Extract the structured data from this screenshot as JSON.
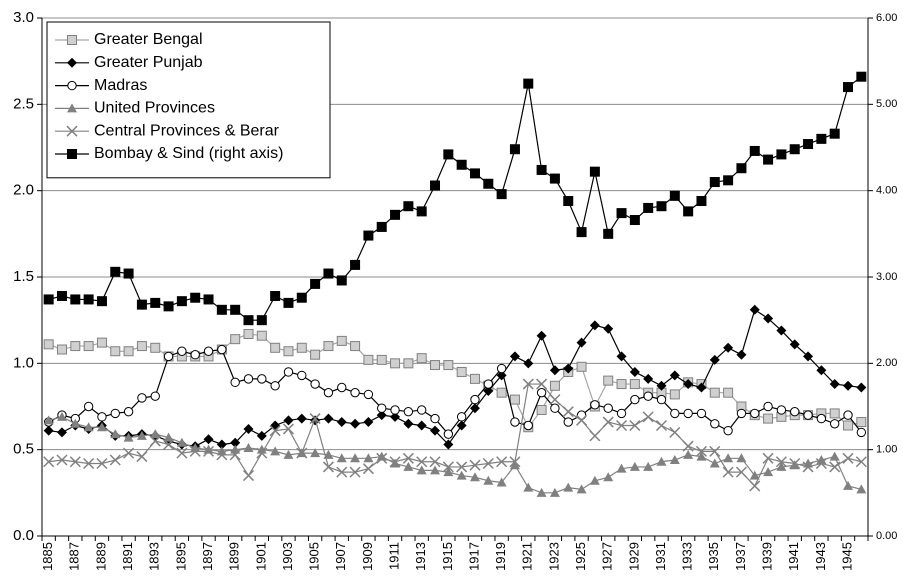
{
  "chart_data": {
    "type": "line",
    "categories": [
      "1885",
      null,
      "1887",
      null,
      "1889",
      null,
      "1891",
      null,
      "1893",
      null,
      "1895",
      null,
      "1897",
      null,
      "1899",
      null,
      "1901",
      null,
      "1903",
      null,
      "1905",
      null,
      "1907",
      null,
      "1909",
      null,
      "1911",
      null,
      "1913",
      null,
      "1915",
      null,
      "1917",
      null,
      "1919",
      null,
      "1921",
      null,
      "1923",
      null,
      "1925",
      null,
      "1927",
      null,
      "1929",
      null,
      "1931",
      null,
      "1933",
      null,
      "1935",
      null,
      "1937",
      null,
      "1939",
      null,
      "1941",
      null,
      "1943",
      null,
      "1945",
      null
    ],
    "ylim": [
      0,
      3
    ],
    "yticks": [
      {
        "value": 0,
        "label": "0.0"
      },
      {
        "value": 0.5,
        "label": "0.5"
      },
      {
        "value": 1,
        "label": "1.0"
      },
      {
        "value": 1.5,
        "label": "1.5"
      },
      {
        "value": 2,
        "label": "2.0"
      },
      {
        "value": 2.5,
        "label": "2.5"
      },
      {
        "value": 3,
        "label": "3.0"
      }
    ],
    "y2lim": [
      0,
      6
    ],
    "y2ticks": [
      {
        "value": 0,
        "label": "0.00"
      },
      {
        "value": 1,
        "label": "1.00"
      },
      {
        "value": 2,
        "label": "2.00"
      },
      {
        "value": 3,
        "label": "3.00"
      },
      {
        "value": 4,
        "label": "4.00"
      },
      {
        "value": 5,
        "label": "5.00"
      },
      {
        "value": 6,
        "label": "6.00"
      }
    ],
    "grid": true,
    "legend": "upper-left",
    "series": [
      {
        "name": "Greater Bengal",
        "color": "#a6a6a6",
        "marker": "square",
        "values": [
          1.11,
          1.08,
          1.1,
          1.1,
          1.12,
          1.07,
          1.07,
          1.1,
          1.09,
          1.04,
          1.04,
          1.04,
          1.04,
          1.08,
          1.14,
          1.17,
          1.16,
          1.09,
          1.07,
          1.09,
          1.05,
          1.1,
          1.13,
          1.1,
          1.02,
          1.02,
          1.0,
          1.0,
          1.03,
          0.99,
          0.99,
          0.95,
          0.91,
          0.87,
          0.83,
          0.79,
          0.63,
          0.73,
          0.87,
          0.95,
          0.98,
          0.75,
          0.9,
          0.88,
          0.88,
          0.83,
          0.83,
          0.82,
          0.89,
          0.88,
          0.83,
          0.83,
          0.75,
          0.7,
          0.68,
          0.69,
          0.7,
          0.7,
          0.71,
          0.71,
          0.64,
          0.66
        ]
      },
      {
        "name": "Greater Punjab",
        "color": "#000000",
        "marker": "diamond",
        "values": [
          0.61,
          0.6,
          0.64,
          0.62,
          0.64,
          0.58,
          0.58,
          0.59,
          0.58,
          0.55,
          0.53,
          0.52,
          0.56,
          0.53,
          0.54,
          0.62,
          0.58,
          0.64,
          0.67,
          0.68,
          0.67,
          0.68,
          0.66,
          0.65,
          0.66,
          0.7,
          0.69,
          0.65,
          0.64,
          0.61,
          0.53,
          0.64,
          0.74,
          0.84,
          0.93,
          1.04,
          1.0,
          1.16,
          0.96,
          0.97,
          1.12,
          1.22,
          1.2,
          1.04,
          0.95,
          0.91,
          0.87,
          0.93,
          0.88,
          0.86,
          1.02,
          1.09,
          1.05,
          1.31,
          1.26,
          1.19,
          1.11,
          1.04,
          0.96,
          0.88,
          0.87,
          0.86
        ]
      },
      {
        "name": "Madras",
        "color": "#000000",
        "marker": "open-circle",
        "values": [
          0.66,
          0.7,
          0.68,
          0.75,
          0.69,
          0.71,
          0.72,
          0.8,
          0.81,
          1.04,
          1.07,
          1.05,
          1.07,
          1.08,
          0.89,
          0.91,
          0.91,
          0.87,
          0.95,
          0.93,
          0.88,
          0.83,
          0.86,
          0.83,
          0.82,
          0.74,
          0.73,
          0.72,
          0.73,
          0.68,
          0.59,
          0.69,
          0.79,
          0.88,
          0.97,
          0.66,
          0.64,
          0.83,
          0.74,
          0.66,
          0.7,
          0.76,
          0.74,
          0.71,
          0.79,
          0.81,
          0.79,
          0.71,
          0.71,
          0.71,
          0.65,
          0.61,
          0.71,
          0.71,
          0.75,
          0.73,
          0.72,
          0.7,
          0.68,
          0.65,
          0.7,
          0.6
        ]
      },
      {
        "name": "United Provinces",
        "color": "#808080",
        "marker": "triangle",
        "values": [
          0.67,
          0.69,
          0.65,
          0.63,
          0.63,
          0.59,
          0.57,
          0.58,
          0.59,
          0.57,
          0.54,
          0.51,
          0.5,
          0.49,
          0.5,
          0.51,
          0.5,
          0.49,
          0.47,
          0.48,
          0.48,
          0.47,
          0.45,
          0.45,
          0.45,
          0.46,
          0.42,
          0.4,
          0.38,
          0.38,
          0.37,
          0.35,
          0.34,
          0.32,
          0.31,
          0.41,
          0.28,
          0.25,
          0.25,
          0.28,
          0.27,
          0.32,
          0.34,
          0.39,
          0.4,
          0.4,
          0.43,
          0.44,
          0.47,
          0.46,
          0.42,
          0.45,
          0.45,
          0.35,
          0.37,
          0.4,
          0.41,
          0.42,
          0.44,
          0.46,
          0.29,
          0.27
        ]
      },
      {
        "name": "Central Provinces & Berar",
        "color": "#808080",
        "marker": "cross",
        "values": [
          0.43,
          0.44,
          0.43,
          0.42,
          0.42,
          0.44,
          0.48,
          0.46,
          0.55,
          0.53,
          0.48,
          0.49,
          0.49,
          0.47,
          0.47,
          0.35,
          0.48,
          0.61,
          0.62,
          0.48,
          0.68,
          0.4,
          0.37,
          0.37,
          0.39,
          0.45,
          0.43,
          0.45,
          0.43,
          0.43,
          0.4,
          0.4,
          0.41,
          0.42,
          0.43,
          0.43,
          0.88,
          0.88,
          0.79,
          0.72,
          0.67,
          0.58,
          0.66,
          0.64,
          0.64,
          0.69,
          0.64,
          0.6,
          0.52,
          0.49,
          0.49,
          0.37,
          0.37,
          0.29,
          0.45,
          0.43,
          0.42,
          0.4,
          0.42,
          0.4,
          0.45,
          0.43
        ]
      },
      {
        "name": "Bombay & Sind (right axis)",
        "color": "#000000",
        "marker": "square",
        "axis": "y2",
        "values": [
          2.74,
          2.78,
          2.74,
          2.74,
          2.72,
          3.06,
          3.04,
          2.68,
          2.7,
          2.66,
          2.72,
          2.76,
          2.74,
          2.62,
          2.62,
          2.5,
          2.5,
          2.78,
          2.7,
          2.76,
          2.92,
          3.04,
          2.96,
          3.14,
          3.48,
          3.58,
          3.72,
          3.82,
          3.76,
          4.06,
          4.42,
          4.3,
          4.2,
          4.08,
          3.96,
          4.48,
          5.24,
          4.24,
          4.14,
          3.88,
          3.52,
          4.22,
          3.5,
          3.74,
          3.66,
          3.8,
          3.82,
          3.94,
          3.76,
          3.88,
          4.1,
          4.12,
          4.26,
          4.46,
          4.36,
          4.42,
          4.48,
          4.54,
          4.6,
          4.66,
          5.2,
          5.32
        ]
      }
    ]
  }
}
